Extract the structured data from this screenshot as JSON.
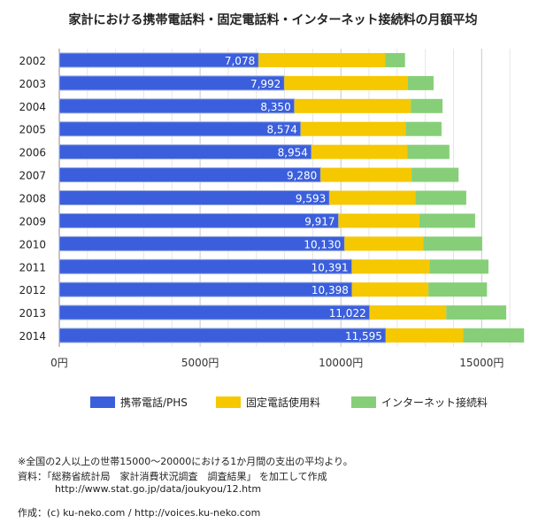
{
  "chart_data": {
    "type": "bar",
    "orientation": "horizontal",
    "stacked": true,
    "title": "家計における携帯電話料・固定電話料・インターネット接続料の月額平均",
    "categories": [
      "2002",
      "2003",
      "2004",
      "2005",
      "2006",
      "2007",
      "2008",
      "2009",
      "2010",
      "2011",
      "2012",
      "2013",
      "2014"
    ],
    "series": [
      {
        "name": "携帯電話/PHS",
        "color": "#3b5fdc",
        "values": [
          7078,
          7992,
          8350,
          8574,
          8954,
          9280,
          9593,
          9917,
          10130,
          10391,
          10398,
          11022,
          11595
        ],
        "labels": [
          "7,078",
          "7,992",
          "8,350",
          "8,574",
          "8,954",
          "9,280",
          "9,593",
          "9,917",
          "10,130",
          "10,391",
          "10,398",
          "11,022",
          "11,595"
        ]
      },
      {
        "name": "固定電話使用料",
        "color": "#f5c800",
        "values": [
          4490,
          4390,
          4130,
          3720,
          3400,
          3230,
          3050,
          2870,
          2800,
          2750,
          2710,
          2720,
          2750
        ]
      },
      {
        "name": "インターネット接続料",
        "color": "#86cf78",
        "values": [
          710,
          910,
          1130,
          1280,
          1500,
          1670,
          1810,
          1980,
          2090,
          2100,
          2080,
          2130,
          2160
        ]
      }
    ],
    "xlim": [
      0,
      16750
    ],
    "xticks": [
      0,
      5000,
      10000,
      15000
    ],
    "xtick_labels": [
      "0円",
      "5000円",
      "10000円",
      "15000円"
    ],
    "grid": true,
    "legend": "bottom"
  },
  "notes": {
    "line1": "※全国の2人以上の世帯15000〜20000における1か月間の支出の平均より。",
    "line2": "資料：「総務省統計局　家計消費状況調査　調査結果」 を加工して作成",
    "line3": "            http://www.stat.go.jp/data/joukyou/12.htm",
    "credit": "作成：(c) ku-neko.com / http://voices.ku-neko.com"
  }
}
